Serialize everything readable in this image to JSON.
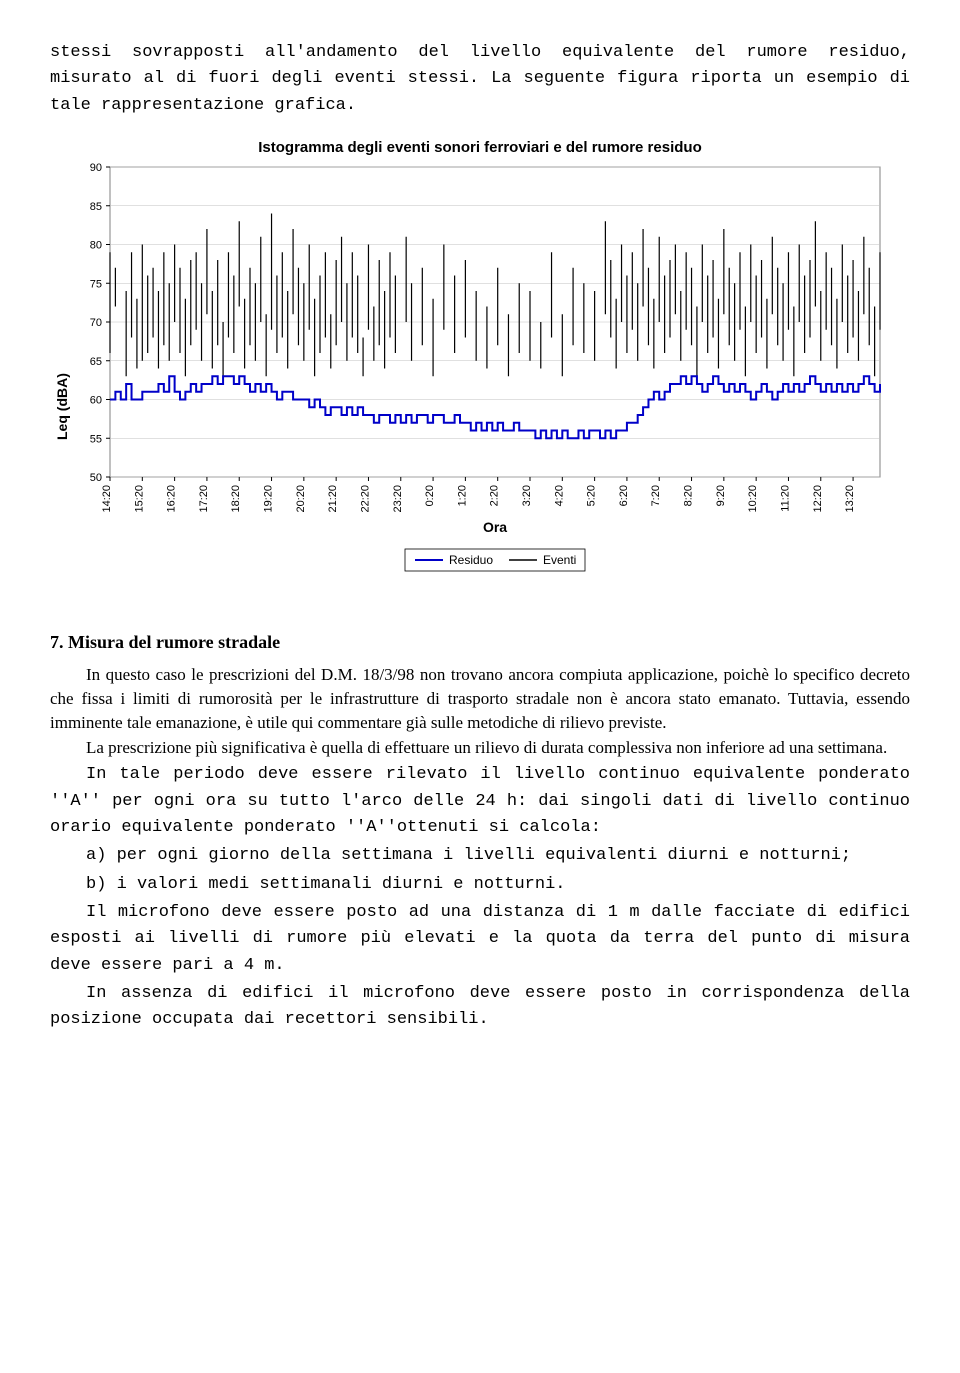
{
  "intro": {
    "p1": "stessi sovrapposti all'andamento del livello equivalente del rumore residuo, misurato al di fuori degli eventi stessi. La seguente figura riporta un esempio di tale rappresentazione grafica."
  },
  "chart": {
    "title": "Istogramma degli eventi sonori ferroviari e del rumore residuo",
    "type": "line+bars",
    "ylabel": "Leq (dBA)",
    "xlabel": "Ora",
    "ylim": [
      50,
      90
    ],
    "ytick_step": 5,
    "yticks": [
      50,
      55,
      60,
      65,
      70,
      75,
      80,
      85,
      90
    ],
    "xticks": [
      "14:20",
      "15:20",
      "16:20",
      "17:20",
      "18:20",
      "19:20",
      "20:20",
      "21:20",
      "22:20",
      "23:20",
      "0:20",
      "1:20",
      "2:20",
      "3:20",
      "4:20",
      "5:20",
      "6:20",
      "7:20",
      "8:20",
      "9:20",
      "10:20",
      "11:20",
      "12:20",
      "13:20",
      "14:20"
    ],
    "legend": [
      "Residuo",
      "Eventi"
    ],
    "residuo_color": "#0000c8",
    "eventi_color": "#000000",
    "plot_bg": "#ffffff",
    "border_color": "#808080",
    "grid_color": "#c0c0c0",
    "residuo_line_width": 2,
    "eventi_line_width": 1.2,
    "axis_font_size": 11,
    "label_font_family": "Arial",
    "label_font_weight": "bold",
    "residuo": [
      60,
      61,
      60,
      62,
      60,
      60,
      61,
      61,
      61,
      62,
      61,
      63,
      61,
      60,
      61,
      62,
      61,
      62,
      62,
      63,
      62,
      63,
      63,
      62,
      63,
      62,
      61,
      62,
      61,
      62,
      61,
      60,
      61,
      61,
      60,
      60,
      60,
      59,
      60,
      59,
      58,
      59,
      59,
      58,
      59,
      58,
      59,
      58,
      58,
      57,
      58,
      58,
      57,
      58,
      57,
      58,
      57,
      58,
      58,
      57,
      58,
      58,
      57,
      57,
      58,
      57,
      57,
      56,
      57,
      56,
      57,
      56,
      57,
      56,
      56,
      57,
      56,
      56,
      56,
      55,
      56,
      55,
      56,
      55,
      56,
      55,
      55,
      56,
      55,
      56,
      56,
      55,
      56,
      55,
      56,
      56,
      57,
      57,
      58,
      59,
      60,
      61,
      60,
      61,
      62,
      62,
      63,
      62,
      63,
      62,
      61,
      62,
      63,
      62,
      61,
      62,
      61,
      62,
      61,
      60,
      61,
      62,
      61,
      60,
      61,
      62,
      61,
      62,
      61,
      62,
      63,
      62,
      61,
      62,
      61,
      62,
      61,
      62,
      61,
      62,
      63,
      62,
      61,
      62
    ],
    "eventi": [
      [
        0,
        66,
        79
      ],
      [
        1,
        72,
        77
      ],
      [
        3,
        63,
        74
      ],
      [
        4,
        68,
        79
      ],
      [
        5,
        64,
        73
      ],
      [
        6,
        65,
        80
      ],
      [
        7,
        66,
        76
      ],
      [
        8,
        68,
        77
      ],
      [
        9,
        64,
        74
      ],
      [
        10,
        67,
        79
      ],
      [
        11,
        65,
        75
      ],
      [
        12,
        70,
        80
      ],
      [
        13,
        66,
        77
      ],
      [
        14,
        63,
        73
      ],
      [
        15,
        67,
        78
      ],
      [
        16,
        69,
        79
      ],
      [
        17,
        65,
        75
      ],
      [
        18,
        71,
        82
      ],
      [
        19,
        64,
        74
      ],
      [
        20,
        67,
        78
      ],
      [
        21,
        63,
        70
      ],
      [
        22,
        68,
        79
      ],
      [
        23,
        66,
        76
      ],
      [
        24,
        72,
        83
      ],
      [
        25,
        64,
        73
      ],
      [
        26,
        67,
        77
      ],
      [
        27,
        65,
        75
      ],
      [
        28,
        70,
        81
      ],
      [
        29,
        63,
        71
      ],
      [
        30,
        69,
        84
      ],
      [
        31,
        66,
        76
      ],
      [
        32,
        68,
        79
      ],
      [
        33,
        64,
        74
      ],
      [
        34,
        71,
        82
      ],
      [
        35,
        67,
        77
      ],
      [
        36,
        65,
        75
      ],
      [
        37,
        69,
        80
      ],
      [
        38,
        63,
        73
      ],
      [
        39,
        66,
        76
      ],
      [
        40,
        68,
        79
      ],
      [
        41,
        64,
        71
      ],
      [
        42,
        67,
        78
      ],
      [
        43,
        70,
        81
      ],
      [
        44,
        65,
        75
      ],
      [
        45,
        68,
        79
      ],
      [
        46,
        66,
        76
      ],
      [
        47,
        63,
        68
      ],
      [
        48,
        69,
        80
      ],
      [
        49,
        65,
        72
      ],
      [
        50,
        67,
        78
      ],
      [
        51,
        64,
        74
      ],
      [
        52,
        68,
        79
      ],
      [
        53,
        66,
        76
      ],
      [
        55,
        70,
        81
      ],
      [
        56,
        65,
        75
      ],
      [
        58,
        67,
        77
      ],
      [
        60,
        63,
        73
      ],
      [
        62,
        69,
        80
      ],
      [
        64,
        66,
        76
      ],
      [
        66,
        68,
        78
      ],
      [
        68,
        65,
        74
      ],
      [
        70,
        64,
        72
      ],
      [
        72,
        67,
        77
      ],
      [
        74,
        63,
        71
      ],
      [
        76,
        66,
        75
      ],
      [
        78,
        65,
        74
      ],
      [
        80,
        64,
        70
      ],
      [
        82,
        68,
        79
      ],
      [
        84,
        63,
        71
      ],
      [
        86,
        67,
        77
      ],
      [
        88,
        66,
        75
      ],
      [
        90,
        65,
        74
      ],
      [
        92,
        71,
        83
      ],
      [
        93,
        68,
        78
      ],
      [
        94,
        64,
        73
      ],
      [
        95,
        70,
        80
      ],
      [
        96,
        66,
        76
      ],
      [
        97,
        69,
        79
      ],
      [
        98,
        65,
        75
      ],
      [
        99,
        72,
        82
      ],
      [
        100,
        67,
        77
      ],
      [
        101,
        64,
        73
      ],
      [
        102,
        70,
        81
      ],
      [
        103,
        66,
        76
      ],
      [
        104,
        68,
        78
      ],
      [
        105,
        71,
        80
      ],
      [
        106,
        65,
        74
      ],
      [
        107,
        69,
        79
      ],
      [
        108,
        67,
        77
      ],
      [
        109,
        63,
        72
      ],
      [
        110,
        70,
        80
      ],
      [
        111,
        66,
        76
      ],
      [
        112,
        68,
        78
      ],
      [
        113,
        64,
        73
      ],
      [
        114,
        71,
        82
      ],
      [
        115,
        67,
        77
      ],
      [
        116,
        65,
        75
      ],
      [
        117,
        69,
        79
      ],
      [
        118,
        63,
        72
      ],
      [
        119,
        70,
        80
      ],
      [
        120,
        66,
        76
      ],
      [
        121,
        68,
        78
      ],
      [
        122,
        64,
        73
      ],
      [
        123,
        71,
        81
      ],
      [
        124,
        67,
        77
      ],
      [
        125,
        65,
        75
      ],
      [
        126,
        69,
        79
      ],
      [
        127,
        63,
        72
      ],
      [
        128,
        70,
        80
      ],
      [
        129,
        66,
        76
      ],
      [
        130,
        68,
        78
      ],
      [
        131,
        72,
        83
      ],
      [
        132,
        65,
        74
      ],
      [
        133,
        69,
        79
      ],
      [
        134,
        67,
        77
      ],
      [
        135,
        64,
        73
      ],
      [
        136,
        70,
        80
      ],
      [
        137,
        66,
        76
      ],
      [
        138,
        68,
        78
      ],
      [
        139,
        65,
        74
      ],
      [
        140,
        71,
        81
      ],
      [
        141,
        67,
        77
      ],
      [
        142,
        63,
        72
      ],
      [
        143,
        69,
        79
      ]
    ]
  },
  "section7": {
    "heading": "7. Misura del rumore stradale",
    "p1": "In questo caso le prescrizioni del D.M. 18/3/98 non trovano ancora compiuta applicazione, poichè lo specifico decreto che fissa i limiti di rumorosità per le infrastrutture di trasporto stradale non è ancora stato emanato. Tuttavia, essendo imminente tale emanazione, è utile qui commentare già sulle metodiche di rilievo previste.",
    "p2": "La prescrizione più significativa è quella di effettuare un rilievo di durata complessiva non inferiore ad una settimana.",
    "p3": "In tale periodo deve essere rilevato il livello continuo equivalente ponderato ''A'' per ogni ora su tutto l'arco delle 24 h: dai singoli dati di livello continuo orario equivalente ponderato ''A''ottenuti si calcola:",
    "p4": "a) per ogni giorno della settimana i livelli equivalenti diurni e notturni;",
    "p5": "b) i valori medi settimanali diurni e notturni.",
    "p6": "Il microfono deve essere posto ad una distanza di 1 m dalle facciate di edifici esposti ai livelli di rumore più elevati e la quota da terra del punto di misura deve essere pari a 4 m.",
    "p7": "In assenza di edifici il microfono deve essere posto in corrispondenza della posizione occupata dai recettori sensibili."
  }
}
